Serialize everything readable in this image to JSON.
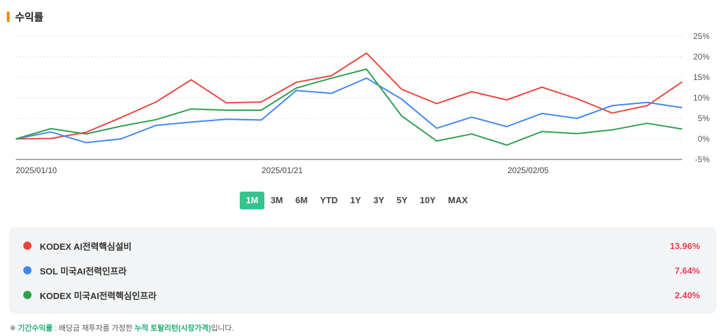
{
  "title": "수익률",
  "chart_data": {
    "type": "line",
    "x_labels": [
      "2025/01/10",
      "2025/01/21",
      "2025/02/05"
    ],
    "yticks": [
      "25%",
      "20%",
      "15%",
      "10%",
      "5%",
      "0%",
      "-5%"
    ],
    "ylim": [
      -5,
      25
    ],
    "grid": true,
    "series": [
      {
        "name": "KODEX AI전력핵심설비",
        "color": "#e8463c",
        "values": [
          0,
          0.1,
          1.6,
          5.2,
          9.0,
          14.4,
          8.8,
          9.0,
          13.8,
          15.4,
          20.9,
          12.1,
          8.6,
          11.5,
          9.5,
          12.6,
          9.8,
          6.3,
          8.1,
          13.9
        ]
      },
      {
        "name": "SOL 미국AI전력인프라",
        "color": "#3f87ef",
        "values": [
          0,
          1.7,
          -0.9,
          0,
          3.3,
          4.1,
          4.8,
          4.6,
          11.8,
          11.1,
          14.8,
          9.7,
          2.6,
          5.3,
          3.0,
          6.2,
          5.0,
          8.1,
          8.9,
          7.6
        ]
      },
      {
        "name": "KODEX 미국AI전력핵심인프라",
        "color": "#2f9e4f",
        "values": [
          0,
          2.5,
          1.2,
          3.1,
          4.7,
          7.3,
          7.0,
          7.0,
          12.4,
          14.8,
          17.0,
          5.6,
          -0.5,
          1.2,
          -1.5,
          1.8,
          1.3,
          2.2,
          3.8,
          2.4
        ]
      }
    ]
  },
  "periods": [
    "1M",
    "3M",
    "6M",
    "YTD",
    "1Y",
    "3Y",
    "5Y",
    "10Y",
    "MAX"
  ],
  "active_period": "1M",
  "legend": [
    {
      "name": "KODEX AI전력핵심설비",
      "value": "13.96%",
      "color": "#e8463c"
    },
    {
      "name": "SOL 미국AI전력인프라",
      "value": "7.64%",
      "color": "#3f87ef"
    },
    {
      "name": "KODEX 미국AI전력핵심인프라",
      "value": "2.40%",
      "color": "#2f9e4f"
    }
  ],
  "footnote": {
    "prefix": "※ ",
    "term": "기간수익률",
    "middle": " : 배당금 재투자를 가정한 ",
    "highlight": "누적 토탈리턴(시장가격)",
    "suffix": "입니다."
  }
}
